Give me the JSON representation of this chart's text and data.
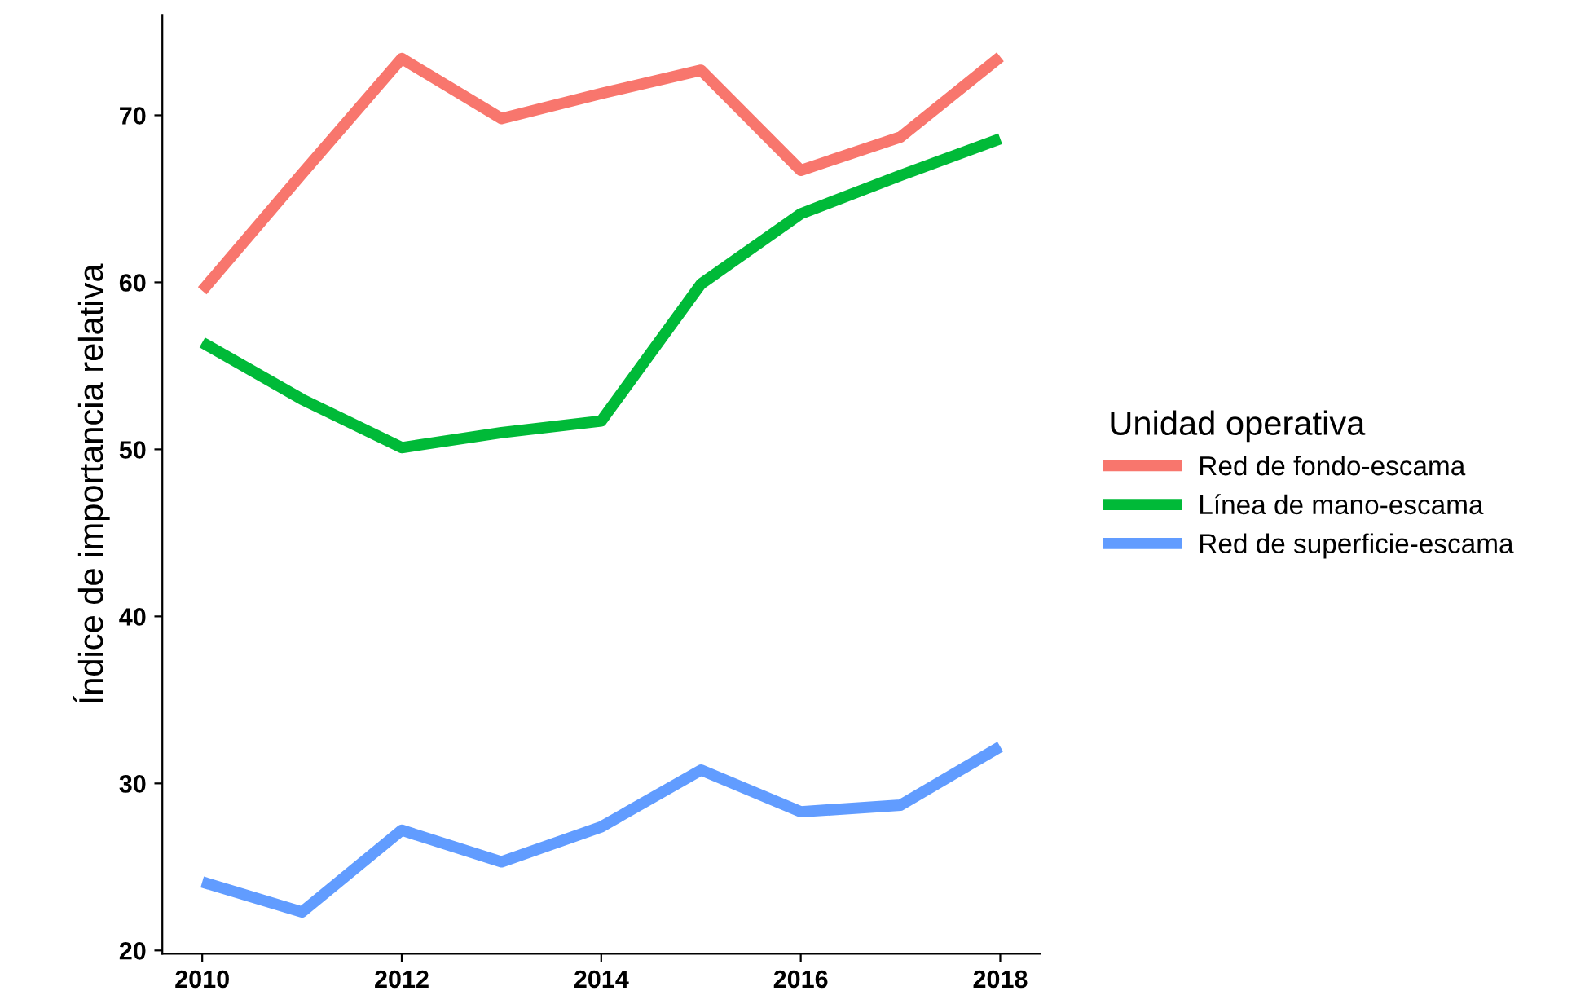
{
  "chart_data": {
    "type": "line",
    "ylabel": "Índice de importancia relativa",
    "legend_title": "Unidad operativa",
    "legend": "right",
    "grid": false,
    "x": [
      2010,
      2011,
      2012,
      2013,
      2014,
      2015,
      2016,
      2017,
      2018
    ],
    "series": [
      {
        "name": "Red de fondo-escama",
        "color": "#f8766d",
        "values": [
          59.5,
          66.5,
          73.4,
          69.8,
          71.3,
          72.7,
          66.7,
          68.7,
          73.5
        ]
      },
      {
        "name": "Línea de mano-escama",
        "color": "#00ba38",
        "values": [
          56.4,
          53.0,
          50.1,
          51.0,
          51.7,
          59.9,
          64.1,
          66.4,
          68.6
        ]
      },
      {
        "name": "Red de superficie-escama",
        "color": "#619cff",
        "values": [
          24.1,
          22.3,
          27.2,
          25.3,
          27.4,
          30.8,
          28.3,
          28.7,
          32.2
        ]
      }
    ],
    "xlim": [
      2009.6,
      2018.4
    ],
    "ylim": [
      19.8,
      76
    ],
    "xticks": [
      2010,
      2012,
      2014,
      2016,
      2018
    ],
    "yticks": [
      20,
      30,
      40,
      50,
      60,
      70
    ]
  }
}
